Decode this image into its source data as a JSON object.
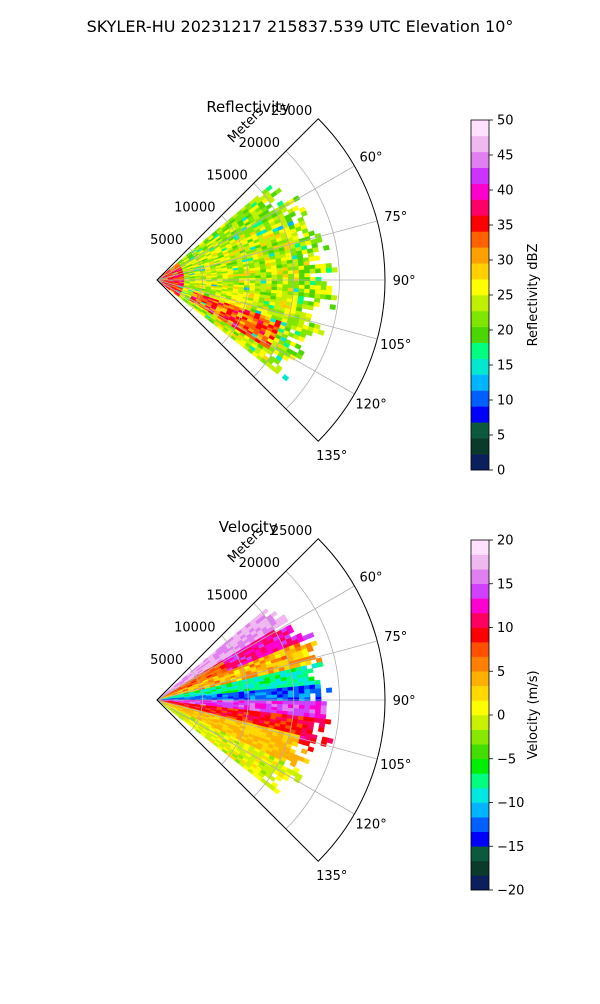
{
  "figure": {
    "suptitle": "SKYLER-HU  20231217  215837.539 UTC Elevation 10°"
  },
  "chart_data": [
    {
      "type": "heatmap",
      "projection": "polar-sector",
      "title": "Reflectivity",
      "radial_label": "Meters",
      "radial_ticks": [
        5000,
        10000,
        15000,
        20000,
        25000
      ],
      "radial_tick_labels": [
        "5000",
        "10000",
        "15000",
        "20000",
        "25000"
      ],
      "r_max": 25000,
      "theta_range_deg": [
        45,
        135
      ],
      "theta_ticks_deg": [
        60,
        75,
        90,
        105,
        120,
        135
      ],
      "theta_tick_labels": [
        "60°",
        "75°",
        "90°",
        "105°",
        "120°",
        "135°"
      ],
      "grid": true,
      "data_extent": {
        "theta_deg": [
          50,
          128
        ],
        "r_max_m": 20000
      },
      "field_trend": "higher reflectivity (30-37 dBZ) near origin and along lower-right sector around 110-120°, mostly 18-28 dBZ elsewhere",
      "colorbar": {
        "label": "Reflectivity dBZ",
        "min": 0,
        "max": 50,
        "ticks": [
          0,
          5,
          10,
          15,
          20,
          25,
          30,
          35,
          40,
          45,
          50
        ],
        "tick_labels": [
          "0",
          "5",
          "10",
          "15",
          "20",
          "25",
          "30",
          "35",
          "40",
          "45",
          "50"
        ],
        "colors": [
          "#0b1f5c",
          "#0a3a2a",
          "#0c5a3e",
          "#0000ff",
          "#0060ff",
          "#00b4ff",
          "#00e8d0",
          "#00ff80",
          "#4cd600",
          "#7fe600",
          "#c0f000",
          "#ffff00",
          "#ffd000",
          "#ffa000",
          "#ff6000",
          "#ff0000",
          "#ff0066",
          "#ff00cc",
          "#cc33ff",
          "#e080f0",
          "#f0b8f0",
          "#ffe0ff"
        ]
      }
    },
    {
      "type": "heatmap",
      "projection": "polar-sector",
      "title": "Velocity",
      "radial_label": "Meters",
      "radial_ticks": [
        5000,
        10000,
        15000,
        20000,
        25000
      ],
      "radial_tick_labels": [
        "5000",
        "10000",
        "15000",
        "20000",
        "25000"
      ],
      "r_max": 25000,
      "theta_range_deg": [
        45,
        135
      ],
      "theta_ticks_deg": [
        60,
        75,
        90,
        105,
        120,
        135
      ],
      "theta_tick_labels": [
        "60°",
        "75°",
        "90°",
        "105°",
        "120°",
        "135°"
      ],
      "grid": true,
      "data_extent": {
        "theta_deg": [
          50,
          128
        ],
        "r_max_m": 20000
      },
      "field_trend": "bands by azimuth: red/orange +8 to +12 near 60-70°, magenta +15 near 62°, green/cyan -5 to -12 around 78-88°, magenta/red +10 to +15 near 92-98°, yellow/orange 0 to +5 toward 105-128°",
      "colorbar": {
        "label": "Velocity (m/s)",
        "min": -20,
        "max": 20,
        "ticks": [
          -20,
          -15,
          -10,
          -5,
          0,
          5,
          10,
          15,
          20
        ],
        "tick_labels": [
          "−20",
          "−15",
          "−10",
          "−5",
          "0",
          "5",
          "10",
          "15",
          "20"
        ],
        "colors": [
          "#0b1f5c",
          "#0a3a2a",
          "#0c5a3e",
          "#0000ff",
          "#0060ff",
          "#00b4ff",
          "#00e8e0",
          "#00ff80",
          "#00ee00",
          "#44dd00",
          "#88e800",
          "#c8f000",
          "#ffff00",
          "#ffd800",
          "#ffb000",
          "#ff8000",
          "#ff5000",
          "#ff0000",
          "#ff0060",
          "#ff00d0",
          "#d040ff",
          "#e080f0",
          "#f0b8f0",
          "#ffe0ff"
        ]
      }
    }
  ]
}
